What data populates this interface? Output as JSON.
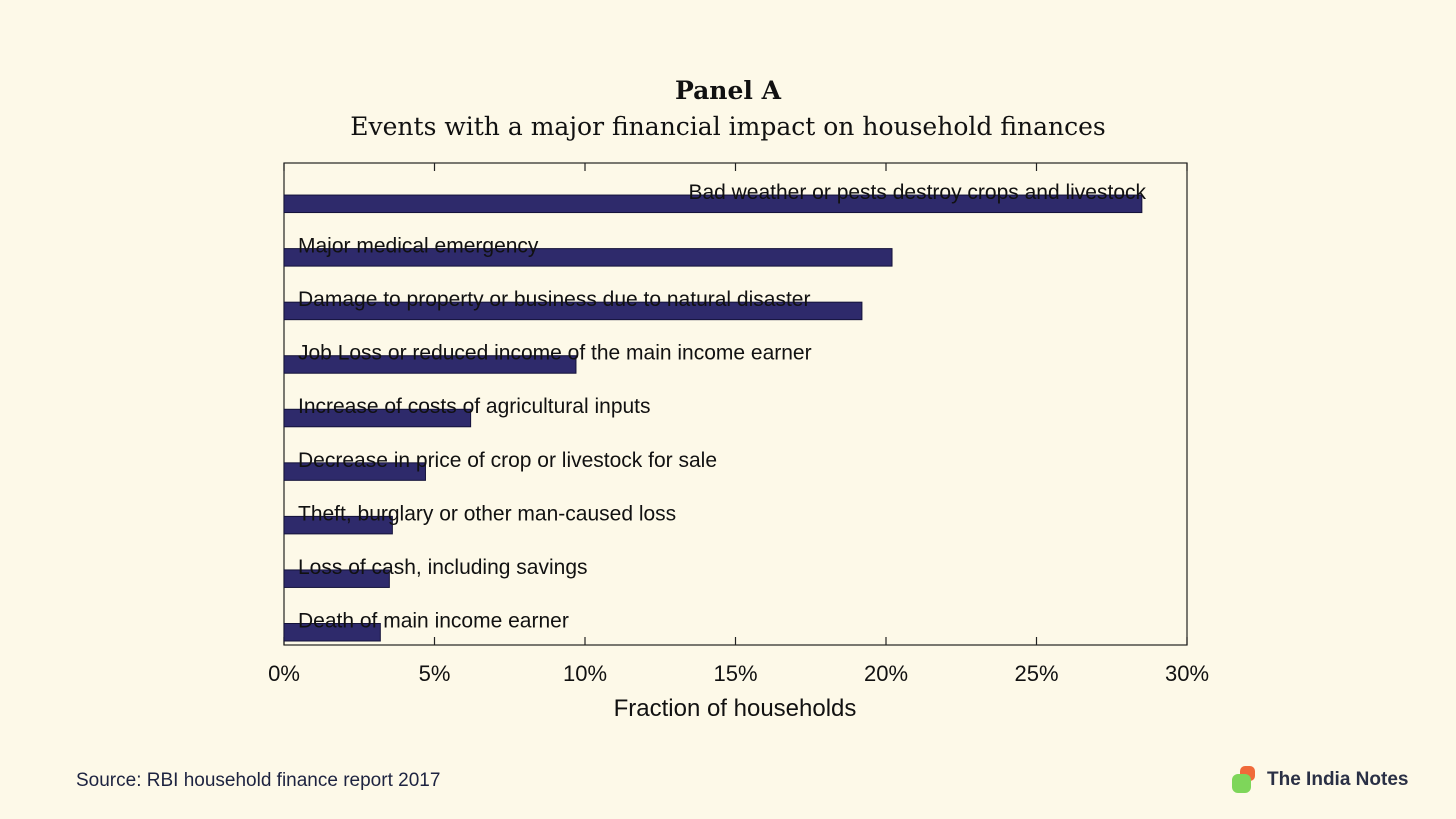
{
  "header": {
    "title": "Panel A",
    "subtitle": "Events with a major financial impact on household finances"
  },
  "chart_data": {
    "type": "bar",
    "orientation": "horizontal",
    "title": "Panel A",
    "subtitle": "Events with a major financial impact on household finances",
    "xlabel": "Fraction of households",
    "ylabel": "",
    "xlim": [
      0,
      30
    ],
    "x_ticks": [
      "0%",
      "5%",
      "10%",
      "15%",
      "20%",
      "25%",
      "30%"
    ],
    "x_tick_values": [
      0,
      5,
      10,
      15,
      20,
      25,
      30
    ],
    "grid": false,
    "legend": "none",
    "bar_color": "#2e2a6b",
    "categories": [
      "Bad weather or pests destroy crops and livestock",
      "Major medical emergency",
      "Damage to property or business due to natural disaster",
      "Job Loss or reduced income of the main income earner",
      "Increase of costs of agricultural inputs",
      "Decrease in price of crop or livestock for sale",
      "Theft, burglary or other man-caused loss",
      "Loss of cash, including savings",
      "Death of main income earner"
    ],
    "values": [
      28.5,
      20.2,
      19.2,
      9.7,
      6.2,
      4.7,
      3.6,
      3.5,
      3.2
    ]
  },
  "footer": {
    "source": "Source: RBI household finance report 2017",
    "brand": "The India Notes",
    "logo_colors": [
      "#f06a3a",
      "#7ed65a"
    ]
  }
}
